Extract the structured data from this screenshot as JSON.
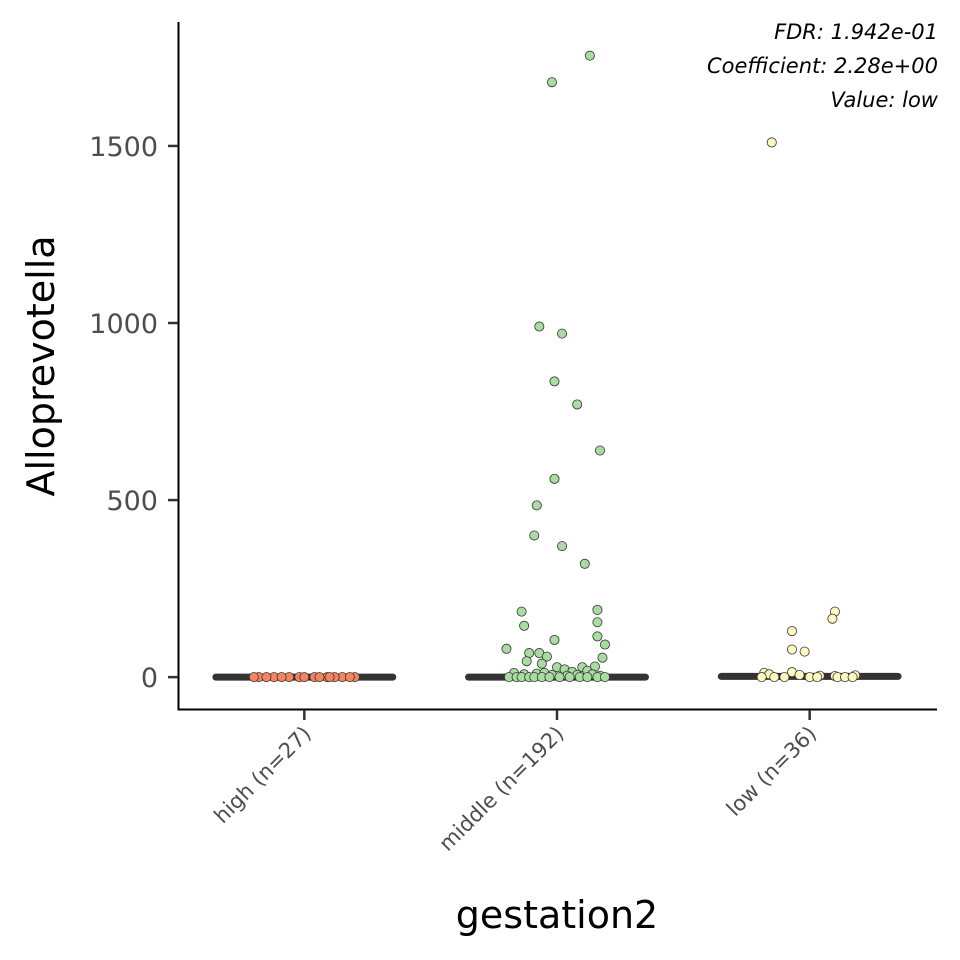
{
  "chart_data": {
    "type": "scatter",
    "title": "",
    "xlabel": "gestation2",
    "ylabel": "Alloprevotella",
    "ylim": [
      -90,
      1850
    ],
    "yticks": [
      0,
      500,
      1000,
      1500
    ],
    "ytick_labels": [
      "0",
      "500",
      "1000",
      "1500"
    ],
    "categories": [
      "high (n=27)",
      "middle (n=192)",
      "low (n=36)"
    ],
    "grid": false,
    "legend": "none",
    "annotations": [
      "FDR: 1.942e-01",
      "Coefficient: 2.28e+00",
      "Value: low"
    ],
    "colors": {
      "high (n=27)": "#f4845f",
      "middle (n=192)": "#a8dca0",
      "low (n=36)": "#fbf8c0",
      "median_line": "#333333",
      "point_outline": "#333333"
    },
    "medians": [
      0,
      0,
      2
    ],
    "series": [
      {
        "category": "high (n=27)",
        "points": [
          [
            -0.18,
            0
          ],
          [
            -0.12,
            0
          ],
          [
            -0.06,
            0
          ],
          [
            -0.02,
            0
          ],
          [
            0.04,
            0
          ],
          [
            0.09,
            0
          ],
          [
            0.15,
            0
          ],
          [
            0.2,
            0
          ],
          [
            -0.15,
            0
          ],
          [
            -0.09,
            0
          ],
          [
            0.0,
            0
          ],
          [
            0.06,
            0
          ],
          [
            0.12,
            0
          ],
          [
            0.18,
            0
          ],
          [
            -0.2,
            0
          ],
          [
            0.1,
            0
          ]
        ]
      },
      {
        "category": "middle (n=192)",
        "points": [
          [
            0.13,
            1755
          ],
          [
            -0.02,
            1680
          ],
          [
            -0.07,
            990
          ],
          [
            0.02,
            970
          ],
          [
            -0.01,
            835
          ],
          [
            0.08,
            770
          ],
          [
            0.17,
            640
          ],
          [
            -0.01,
            560
          ],
          [
            -0.08,
            485
          ],
          [
            -0.09,
            400
          ],
          [
            0.02,
            370
          ],
          [
            0.11,
            320
          ],
          [
            -0.14,
            185
          ],
          [
            0.16,
            190
          ],
          [
            -0.13,
            145
          ],
          [
            0.16,
            155
          ],
          [
            0.16,
            115
          ],
          [
            -0.2,
            80
          ],
          [
            0.19,
            92
          ],
          [
            -0.01,
            105
          ],
          [
            0.18,
            55
          ],
          [
            -0.11,
            68
          ],
          [
            -0.07,
            68
          ],
          [
            -0.04,
            58
          ],
          [
            -0.12,
            45
          ],
          [
            -0.06,
            38
          ],
          [
            0.0,
            28
          ],
          [
            0.03,
            22
          ],
          [
            0.1,
            28
          ],
          [
            0.15,
            30
          ],
          [
            0.06,
            15
          ],
          [
            0.12,
            18
          ],
          [
            -0.17,
            12
          ],
          [
            -0.13,
            8
          ],
          [
            -0.08,
            10
          ],
          [
            -0.05,
            12
          ],
          [
            -0.02,
            6
          ],
          [
            0.04,
            4
          ],
          [
            0.08,
            6
          ],
          [
            0.14,
            8
          ],
          [
            0.17,
            4
          ],
          [
            -0.19,
            0
          ],
          [
            -0.16,
            0
          ],
          [
            -0.14,
            0
          ],
          [
            -0.11,
            0
          ],
          [
            -0.09,
            0
          ],
          [
            -0.06,
            0
          ],
          [
            -0.03,
            0
          ],
          [
            0.01,
            0
          ],
          [
            0.05,
            0
          ],
          [
            0.09,
            0
          ],
          [
            0.12,
            0
          ],
          [
            0.16,
            0
          ],
          [
            0.19,
            0
          ]
        ]
      },
      {
        "category": "low (n=36)",
        "points": [
          [
            -0.15,
            1510
          ],
          [
            0.1,
            185
          ],
          [
            0.09,
            165
          ],
          [
            -0.07,
            130
          ],
          [
            -0.07,
            78
          ],
          [
            -0.02,
            72
          ],
          [
            -0.18,
            12
          ],
          [
            -0.16,
            8
          ],
          [
            -0.07,
            14
          ],
          [
            -0.04,
            6
          ],
          [
            0.04,
            4
          ],
          [
            0.1,
            3
          ],
          [
            0.18,
            5
          ],
          [
            -0.19,
            0
          ],
          [
            -0.14,
            0
          ],
          [
            -0.1,
            0
          ],
          [
            0.0,
            0
          ],
          [
            0.03,
            0
          ],
          [
            0.11,
            0
          ],
          [
            0.14,
            0
          ],
          [
            0.17,
            0
          ]
        ]
      }
    ]
  }
}
